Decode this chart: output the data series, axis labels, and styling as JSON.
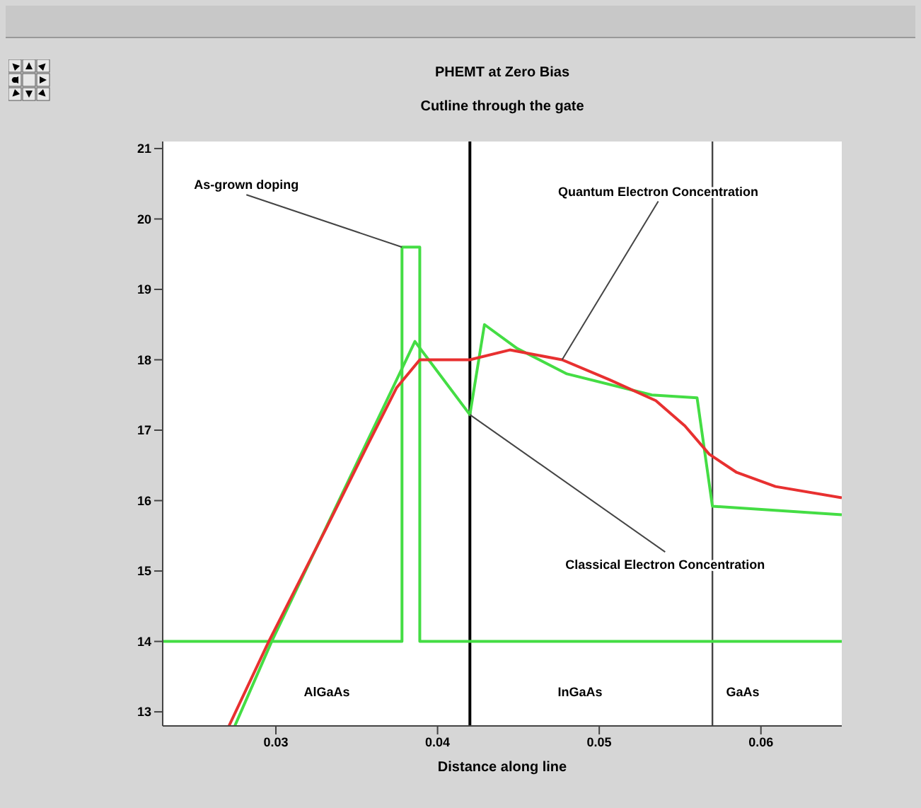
{
  "chart_data": {
    "type": "line",
    "title": "PHEMT at Zero Bias",
    "subtitle": "Cutline through the gate",
    "xlabel": "Distance along line",
    "xlim": [
      0.023,
      0.065
    ],
    "xticks": [
      0.03,
      0.04,
      0.05,
      0.06
    ],
    "ylim": [
      12.8,
      21.1
    ],
    "yticks": [
      13,
      14,
      15,
      16,
      17,
      18,
      19,
      20,
      21
    ],
    "marker": "none",
    "line_style": "solid",
    "series": [
      {
        "color": "#44dd44",
        "x": [
          0.023,
          0.0378,
          0.0378,
          0.0389,
          0.0389,
          0.065
        ],
        "values": [
          14,
          14,
          19.6,
          19.6,
          14,
          14
        ]
      },
      {
        "color": "#44dd44",
        "x": [
          0.02746,
          0.02974,
          0.0386,
          0.042,
          0.0429,
          0.04493,
          0.048,
          0.05325,
          0.05605,
          0.057,
          0.065
        ],
        "values": [
          12.8,
          14,
          18.26,
          17.22,
          18.5,
          18.16,
          17.8,
          17.5,
          17.46,
          15.92,
          15.8
        ]
      },
      {
        "color": "#e83030",
        "x": [
          0.0271,
          0.02956,
          0.0331,
          0.0357,
          0.03746,
          0.0389,
          0.042,
          0.04447,
          0.0477,
          0.0506,
          0.0535,
          0.0553,
          0.0568,
          0.0585,
          0.0609,
          0.065
        ],
        "values": [
          12.8,
          14,
          15.6,
          16.8,
          17.6,
          18.0,
          18.0,
          18.14,
          18.0,
          17.72,
          17.42,
          17.06,
          16.66,
          16.4,
          16.2,
          16.04
        ]
      }
    ],
    "ref_lines": [
      {
        "axis": "x",
        "value": 0.042,
        "color": "#000000"
      },
      {
        "axis": "x",
        "value": 0.057,
        "color": "#444444"
      }
    ],
    "annotations": [
      {
        "text": "As-grown doping",
        "x": 0.0378,
        "y": 19.6
      },
      {
        "text": "Quantum Electron Concentration",
        "x": 0.0477,
        "y": 18.0
      },
      {
        "text": "Classical Electron Concentration",
        "x": 0.042,
        "y": 17.22
      },
      "AlGaAs",
      "InGaAs",
      "GaAs"
    ]
  }
}
